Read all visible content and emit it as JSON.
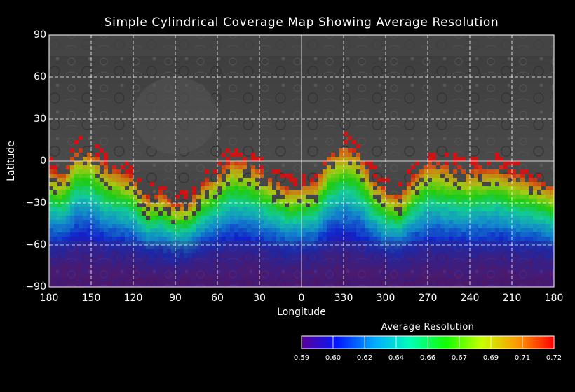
{
  "title": "Simple Cylindrical Coverage Map Showing Average Resolution",
  "axes": {
    "xlabel": "Longitude",
    "ylabel": "Latitude",
    "xticks": [
      "180",
      "150",
      "120",
      "90",
      "60",
      "30",
      "0",
      "330",
      "300",
      "270",
      "240",
      "210",
      "180"
    ],
    "yticks": [
      "90",
      "60",
      "30",
      "0",
      "−30",
      "−60",
      "−90"
    ]
  },
  "colorbar": {
    "title": "Average Resolution",
    "ticks": [
      "0.59",
      "0.60",
      "0.62",
      "0.64",
      "0.66",
      "0.67",
      "0.69",
      "0.71",
      "0.72"
    ],
    "colors": [
      "#5a0098",
      "#0018ff",
      "#00a8ff",
      "#00ffb8",
      "#10ff00",
      "#c8ff00",
      "#ff9800",
      "#ff0000"
    ]
  },
  "coverage_profile": {
    "lat_south_limit": -90,
    "north_edge_by_lon": [
      [
        180,
        -5
      ],
      [
        170,
        -8
      ],
      [
        160,
        10
      ],
      [
        150,
        8
      ],
      [
        140,
        -2
      ],
      [
        130,
        -6
      ],
      [
        120,
        -10
      ],
      [
        110,
        -25
      ],
      [
        100,
        -22
      ],
      [
        90,
        -30
      ],
      [
        80,
        -28
      ],
      [
        70,
        -15
      ],
      [
        60,
        -8
      ],
      [
        50,
        2
      ],
      [
        40,
        0
      ],
      [
        30,
        -5
      ],
      [
        20,
        -12
      ],
      [
        10,
        -18
      ],
      [
        0,
        -16
      ],
      [
        350,
        -14
      ],
      [
        340,
        5
      ],
      [
        330,
        12
      ],
      [
        320,
        8
      ],
      [
        310,
        -10
      ],
      [
        300,
        -20
      ],
      [
        290,
        -24
      ],
      [
        280,
        -10
      ],
      [
        270,
        0
      ],
      [
        260,
        -2
      ],
      [
        250,
        -4
      ],
      [
        240,
        -6
      ],
      [
        230,
        -4
      ],
      [
        220,
        -3
      ],
      [
        210,
        -8
      ],
      [
        200,
        -10
      ],
      [
        190,
        -14
      ],
      [
        180,
        -18
      ]
    ]
  }
}
